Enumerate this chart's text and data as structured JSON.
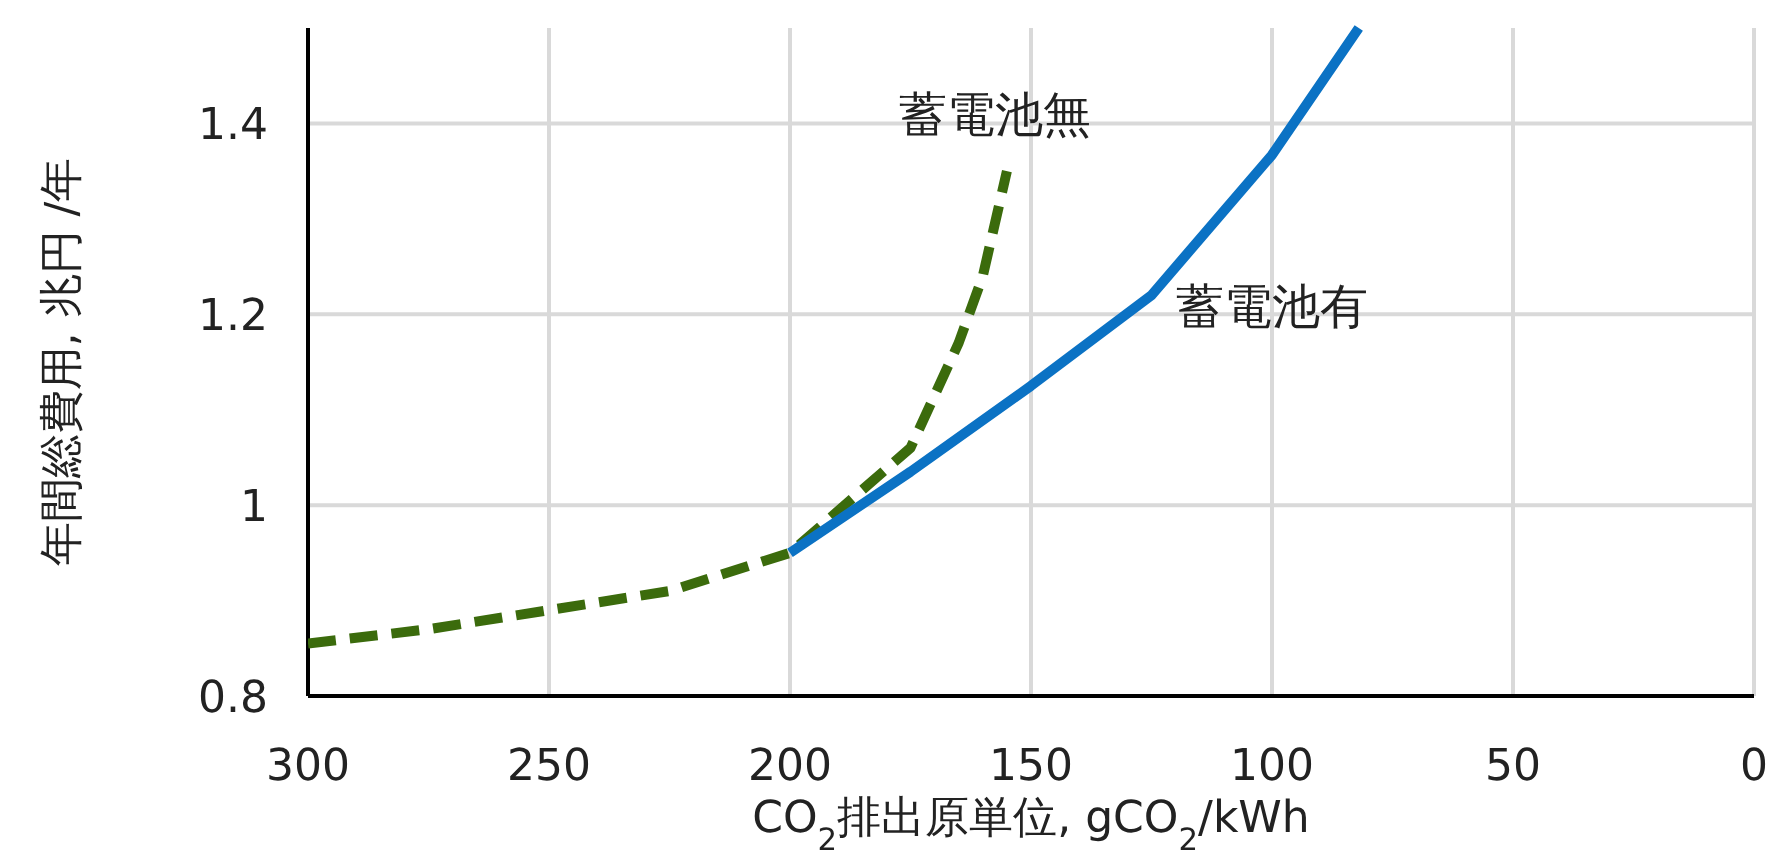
{
  "chart_data": {
    "type": "line",
    "xlabel": "CO$_{2}$排出原単位, gCO$_{2}$/kWh",
    "ylabel": "年間総費用, 兆円 /年",
    "xlim": [
      300,
      0
    ],
    "xticks": [
      300,
      250,
      200,
      150,
      100,
      50,
      0
    ],
    "ylim": [
      0.8,
      1.5
    ],
    "yticks": [
      0.8,
      1,
      1.2,
      1.4
    ],
    "grid": true,
    "series": [
      {
        "name": "蓄電池無",
        "color": "#3b6b0c",
        "line_style": "dashed",
        "x": [
          300,
          275,
          250,
          225,
          200,
          175,
          165,
          160,
          155
        ],
        "values": [
          0.855,
          0.87,
          0.89,
          0.91,
          0.95,
          1.06,
          1.17,
          1.24,
          1.35
        ]
      },
      {
        "name": "蓄電池有",
        "color": "#0b72c4",
        "line_style": "solid",
        "x": [
          200,
          175,
          150,
          125,
          100,
          82
        ],
        "values": [
          0.95,
          1.035,
          1.125,
          1.22,
          1.367,
          1.5
        ]
      }
    ]
  }
}
